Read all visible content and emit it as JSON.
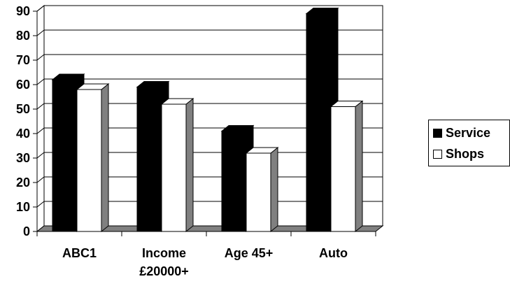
{
  "chart_data": {
    "type": "bar",
    "title": "",
    "xlabel": "",
    "ylabel": "",
    "categories": [
      [
        "ABC1"
      ],
      [
        "Income",
        "£20000+"
      ],
      [
        "Age 45+"
      ],
      [
        "Auto"
      ]
    ],
    "series": [
      {
        "name": "Service",
        "values": [
          62,
          59,
          41,
          89
        ],
        "color": "#000000"
      },
      {
        "name": "Shops",
        "values": [
          58,
          52,
          32,
          51
        ],
        "color": "#ffffff"
      }
    ],
    "ylim": [
      0,
      90
    ],
    "yticks": [
      "0",
      "10",
      "20",
      "30",
      "40",
      "50",
      "60",
      "70",
      "80",
      "90"
    ],
    "grid": true,
    "legend_position": "right",
    "style": "3d-clustered-column",
    "colors": {
      "wall": "#ffffff",
      "floor": "#808080",
      "side": "#808080",
      "outline": "#000000"
    }
  }
}
